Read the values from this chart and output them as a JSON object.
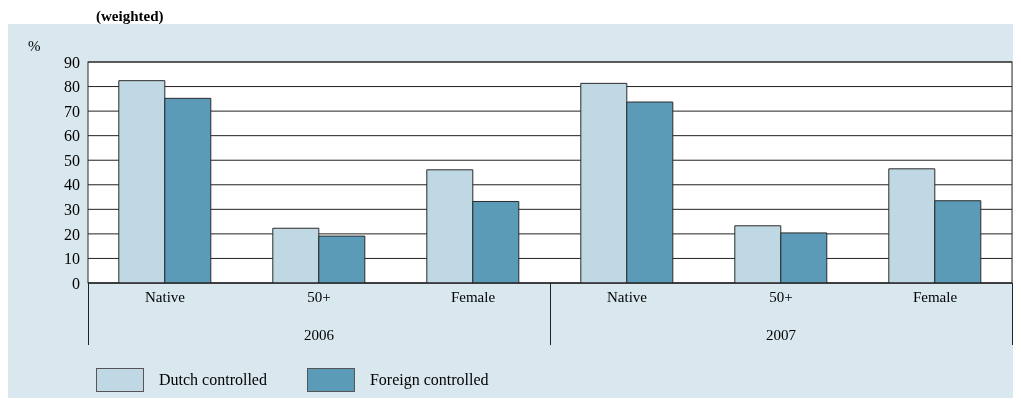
{
  "chart_data": {
    "type": "bar",
    "title": "(weighted)",
    "ylabel": "%",
    "categories": [
      "Native",
      "50+",
      "Female",
      "Native",
      "50+",
      "Female"
    ],
    "series": [
      {
        "name": "Dutch controlled",
        "color": "#c0d8e3",
        "values": [
          82.4,
          22.3,
          46.1,
          81.3,
          23.3,
          46.5
        ]
      },
      {
        "name": "Foreign controlled",
        "color": "#5b9bb8",
        "values": [
          75.2,
          19.1,
          33.2,
          73.7,
          20.4,
          33.5
        ]
      }
    ],
    "annotations": [
      "2006",
      "2007"
    ],
    "ylim": [
      0,
      90
    ],
    "yticks": [
      0,
      10,
      20,
      30,
      40,
      50,
      60,
      70,
      80,
      90
    ],
    "grid": "y",
    "legend": "bottom left"
  }
}
